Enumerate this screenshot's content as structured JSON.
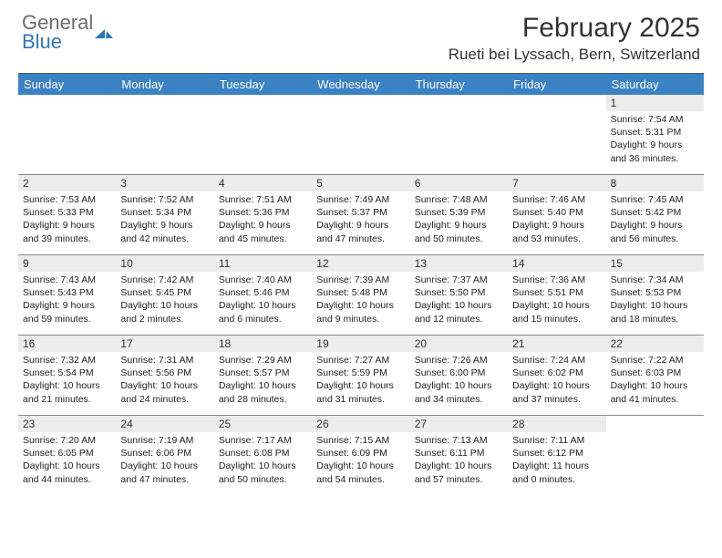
{
  "logo": {
    "line1": "General",
    "line2": "Blue"
  },
  "title": "February 2025",
  "location": "Rueti bei Lyssach, Bern, Switzerland",
  "colors": {
    "header_bar": "#3b82c4",
    "daynum_bg": "#ececec",
    "rule": "#8a8a8a",
    "logo_gray": "#6b6b6b",
    "logo_blue": "#2f77bb"
  },
  "weekdays": [
    "Sunday",
    "Monday",
    "Tuesday",
    "Wednesday",
    "Thursday",
    "Friday",
    "Saturday"
  ],
  "weeks": [
    [
      {
        "n": "",
        "empty": true
      },
      {
        "n": "",
        "empty": true
      },
      {
        "n": "",
        "empty": true
      },
      {
        "n": "",
        "empty": true
      },
      {
        "n": "",
        "empty": true
      },
      {
        "n": "",
        "empty": true
      },
      {
        "n": "1",
        "sunrise": "Sunrise: 7:54 AM",
        "sunset": "Sunset: 5:31 PM",
        "day1": "Daylight: 9 hours",
        "day2": "and 36 minutes."
      }
    ],
    [
      {
        "n": "2",
        "sunrise": "Sunrise: 7:53 AM",
        "sunset": "Sunset: 5:33 PM",
        "day1": "Daylight: 9 hours",
        "day2": "and 39 minutes."
      },
      {
        "n": "3",
        "sunrise": "Sunrise: 7:52 AM",
        "sunset": "Sunset: 5:34 PM",
        "day1": "Daylight: 9 hours",
        "day2": "and 42 minutes."
      },
      {
        "n": "4",
        "sunrise": "Sunrise: 7:51 AM",
        "sunset": "Sunset: 5:36 PM",
        "day1": "Daylight: 9 hours",
        "day2": "and 45 minutes."
      },
      {
        "n": "5",
        "sunrise": "Sunrise: 7:49 AM",
        "sunset": "Sunset: 5:37 PM",
        "day1": "Daylight: 9 hours",
        "day2": "and 47 minutes."
      },
      {
        "n": "6",
        "sunrise": "Sunrise: 7:48 AM",
        "sunset": "Sunset: 5:39 PM",
        "day1": "Daylight: 9 hours",
        "day2": "and 50 minutes."
      },
      {
        "n": "7",
        "sunrise": "Sunrise: 7:46 AM",
        "sunset": "Sunset: 5:40 PM",
        "day1": "Daylight: 9 hours",
        "day2": "and 53 minutes."
      },
      {
        "n": "8",
        "sunrise": "Sunrise: 7:45 AM",
        "sunset": "Sunset: 5:42 PM",
        "day1": "Daylight: 9 hours",
        "day2": "and 56 minutes."
      }
    ],
    [
      {
        "n": "9",
        "sunrise": "Sunrise: 7:43 AM",
        "sunset": "Sunset: 5:43 PM",
        "day1": "Daylight: 9 hours",
        "day2": "and 59 minutes."
      },
      {
        "n": "10",
        "sunrise": "Sunrise: 7:42 AM",
        "sunset": "Sunset: 5:45 PM",
        "day1": "Daylight: 10 hours",
        "day2": "and 2 minutes."
      },
      {
        "n": "11",
        "sunrise": "Sunrise: 7:40 AM",
        "sunset": "Sunset: 5:46 PM",
        "day1": "Daylight: 10 hours",
        "day2": "and 6 minutes."
      },
      {
        "n": "12",
        "sunrise": "Sunrise: 7:39 AM",
        "sunset": "Sunset: 5:48 PM",
        "day1": "Daylight: 10 hours",
        "day2": "and 9 minutes."
      },
      {
        "n": "13",
        "sunrise": "Sunrise: 7:37 AM",
        "sunset": "Sunset: 5:50 PM",
        "day1": "Daylight: 10 hours",
        "day2": "and 12 minutes."
      },
      {
        "n": "14",
        "sunrise": "Sunrise: 7:36 AM",
        "sunset": "Sunset: 5:51 PM",
        "day1": "Daylight: 10 hours",
        "day2": "and 15 minutes."
      },
      {
        "n": "15",
        "sunrise": "Sunrise: 7:34 AM",
        "sunset": "Sunset: 5:53 PM",
        "day1": "Daylight: 10 hours",
        "day2": "and 18 minutes."
      }
    ],
    [
      {
        "n": "16",
        "sunrise": "Sunrise: 7:32 AM",
        "sunset": "Sunset: 5:54 PM",
        "day1": "Daylight: 10 hours",
        "day2": "and 21 minutes."
      },
      {
        "n": "17",
        "sunrise": "Sunrise: 7:31 AM",
        "sunset": "Sunset: 5:56 PM",
        "day1": "Daylight: 10 hours",
        "day2": "and 24 minutes."
      },
      {
        "n": "18",
        "sunrise": "Sunrise: 7:29 AM",
        "sunset": "Sunset: 5:57 PM",
        "day1": "Daylight: 10 hours",
        "day2": "and 28 minutes."
      },
      {
        "n": "19",
        "sunrise": "Sunrise: 7:27 AM",
        "sunset": "Sunset: 5:59 PM",
        "day1": "Daylight: 10 hours",
        "day2": "and 31 minutes."
      },
      {
        "n": "20",
        "sunrise": "Sunrise: 7:26 AM",
        "sunset": "Sunset: 6:00 PM",
        "day1": "Daylight: 10 hours",
        "day2": "and 34 minutes."
      },
      {
        "n": "21",
        "sunrise": "Sunrise: 7:24 AM",
        "sunset": "Sunset: 6:02 PM",
        "day1": "Daylight: 10 hours",
        "day2": "and 37 minutes."
      },
      {
        "n": "22",
        "sunrise": "Sunrise: 7:22 AM",
        "sunset": "Sunset: 6:03 PM",
        "day1": "Daylight: 10 hours",
        "day2": "and 41 minutes."
      }
    ],
    [
      {
        "n": "23",
        "sunrise": "Sunrise: 7:20 AM",
        "sunset": "Sunset: 6:05 PM",
        "day1": "Daylight: 10 hours",
        "day2": "and 44 minutes."
      },
      {
        "n": "24",
        "sunrise": "Sunrise: 7:19 AM",
        "sunset": "Sunset: 6:06 PM",
        "day1": "Daylight: 10 hours",
        "day2": "and 47 minutes."
      },
      {
        "n": "25",
        "sunrise": "Sunrise: 7:17 AM",
        "sunset": "Sunset: 6:08 PM",
        "day1": "Daylight: 10 hours",
        "day2": "and 50 minutes."
      },
      {
        "n": "26",
        "sunrise": "Sunrise: 7:15 AM",
        "sunset": "Sunset: 6:09 PM",
        "day1": "Daylight: 10 hours",
        "day2": "and 54 minutes."
      },
      {
        "n": "27",
        "sunrise": "Sunrise: 7:13 AM",
        "sunset": "Sunset: 6:11 PM",
        "day1": "Daylight: 10 hours",
        "day2": "and 57 minutes."
      },
      {
        "n": "28",
        "sunrise": "Sunrise: 7:11 AM",
        "sunset": "Sunset: 6:12 PM",
        "day1": "Daylight: 11 hours",
        "day2": "and 0 minutes."
      },
      {
        "n": "",
        "empty": true
      }
    ]
  ]
}
